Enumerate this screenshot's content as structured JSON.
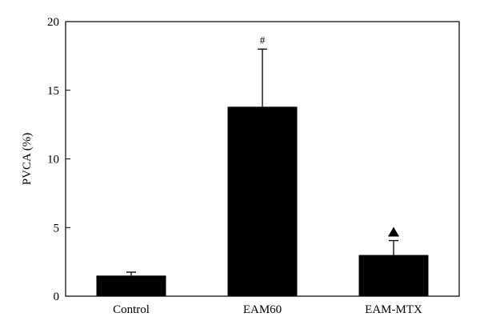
{
  "chart_data": {
    "type": "bar",
    "title": "",
    "xlabel": "",
    "ylabel": "PVCA (%)",
    "ylim": [
      0,
      20
    ],
    "yticks": [
      0,
      5,
      10,
      15,
      20
    ],
    "categories": [
      "Control",
      "EAM60",
      "EAM-MTX"
    ],
    "values": [
      1.5,
      13.8,
      3.0
    ],
    "errors": [
      0.25,
      4.2,
      1.05
    ],
    "annotations": [
      "",
      "#",
      "▲"
    ],
    "bar_color": "#000000",
    "grid": false,
    "legend": "none"
  }
}
